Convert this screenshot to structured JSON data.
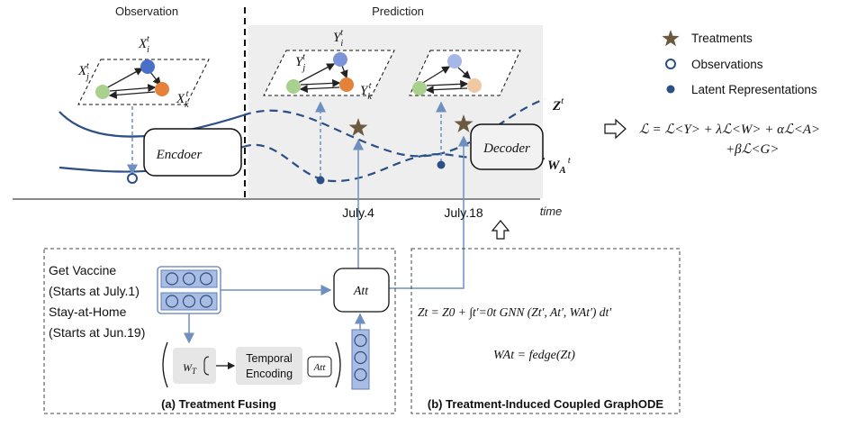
{
  "sections": {
    "observation": "Observation",
    "prediction": "Prediction"
  },
  "graph_labels": {
    "obs_i": "X",
    "obs_j": "X",
    "obs_k": "X",
    "pred_i": "Y",
    "pred_j": "Y",
    "pred_k": "Y",
    "sub_i": "i",
    "sub_j": "j",
    "sub_k": "k",
    "sup_t": "t"
  },
  "boxes": {
    "encoder": "Encdoer",
    "decoder": "Decoder",
    "att_main": "Att",
    "att_small": "Att",
    "temporal_line1": "Temporal",
    "temporal_line2": "Encoding",
    "wt_label": "W",
    "wt_sub": "T"
  },
  "curve_labels": {
    "z": "Z",
    "z_sup": "t",
    "wa": "W",
    "wa_sub": "A",
    "wa_sup": "t"
  },
  "timeline": {
    "tick1": "July.4",
    "tick2": "July.18",
    "axis": "time"
  },
  "legend": {
    "treatments": "Treatments",
    "observations": "Observations",
    "latent": "Latent Representations"
  },
  "loss": {
    "line1": "ℒ = ℒ<Y> + λℒ<W> + αℒ<A>",
    "line2": "+βℒ<G>"
  },
  "treatments_text": {
    "t1": "Get Vaccine",
    "t1_date": "(Starts at July.1)",
    "t2": "Stay-at-Home",
    "t2_date": "(Starts at Jun.19)"
  },
  "equations": {
    "eq1": "Zt = Z0 + ∫t′=0t GNN (Zt′, At′, WAt′) dt′",
    "eq2": "WAt = fedge(Zt)"
  },
  "captions": {
    "a": "(a) Treatment Fusing",
    "b": "(b) Treatment-Induced Coupled GraphODE"
  },
  "colors": {
    "prediction_bg": "#eeeeee",
    "node_blue": "#4a6fc9",
    "node_blue_light": "#a6b6e6",
    "node_orange": "#e4823a",
    "node_orange_light": "#f0c8a4",
    "node_green": "#a9d18e",
    "curve": "#2c4f86",
    "connector": "#6f8fc2",
    "star": "#6b5a3f",
    "bar_fill": "#a9bde3",
    "bar_stroke": "#5f7fb8"
  }
}
